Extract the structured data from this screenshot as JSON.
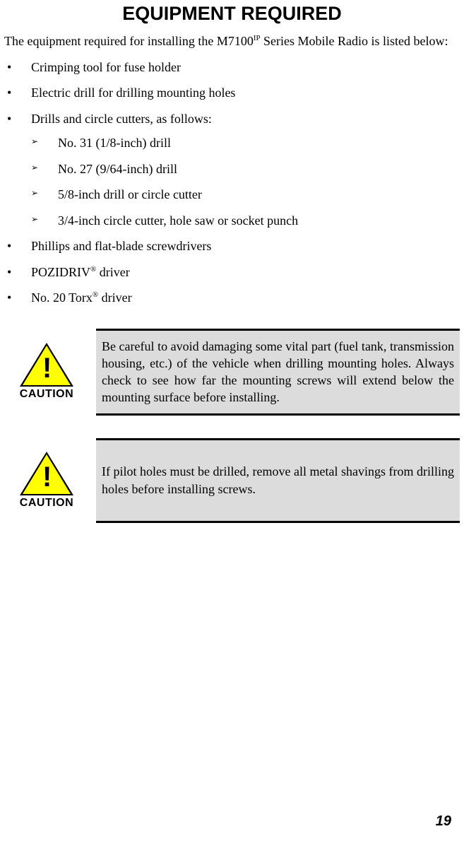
{
  "title": "EQUIPMENT REQUIRED",
  "intro_pre": "The equipment required for installing the M7100",
  "intro_sup": "IP",
  "intro_post": " Series Mobile Radio is listed below:",
  "items": {
    "i0": "Crimping tool for fuse holder",
    "i1": "Electric drill for drilling mounting holes",
    "i2": "Drills and circle cutters, as follows:",
    "i3": "Phillips and flat-blade screwdrivers",
    "i4_pre": "POZIDRIV",
    "i4_sup": "®",
    "i4_post": " driver",
    "i5_pre": "No. 20 Torx",
    "i5_sup": "®",
    "i5_post": " driver"
  },
  "subitems": {
    "s0": "No. 31 (1/8-inch) drill",
    "s1": "No. 27 (9/64-inch) drill",
    "s2": "5/8-inch drill or circle cutter",
    "s3": "3/4-inch circle cutter, hole saw or socket punch"
  },
  "caution1": {
    "label": "CAUTION",
    "text": "Be careful to avoid damaging some vital part (fuel tank, transmission housing, etc.) of the vehicle when drilling mounting holes. Always check to see how far the mounting screws will extend below the mounting surface before installing."
  },
  "caution2": {
    "label": "CAUTION",
    "text": "If pilot holes must be drilled, remove all metal shavings from drilling holes before installing screws."
  },
  "page_number": "19",
  "colors": {
    "background": "#ffffff",
    "text": "#000000",
    "caution_bg": "#dcdcdc",
    "caution_border": "#000000",
    "triangle_fill": "#ffff00",
    "triangle_stroke": "#000000"
  },
  "typography": {
    "title_font": "Arial",
    "title_size_pt": 20,
    "body_font": "Times New Roman",
    "body_size_pt": 13,
    "caution_label_font": "Arial",
    "caution_label_size_pt": 12,
    "page_number_font": "Arial",
    "page_number_size_pt": 15
  }
}
